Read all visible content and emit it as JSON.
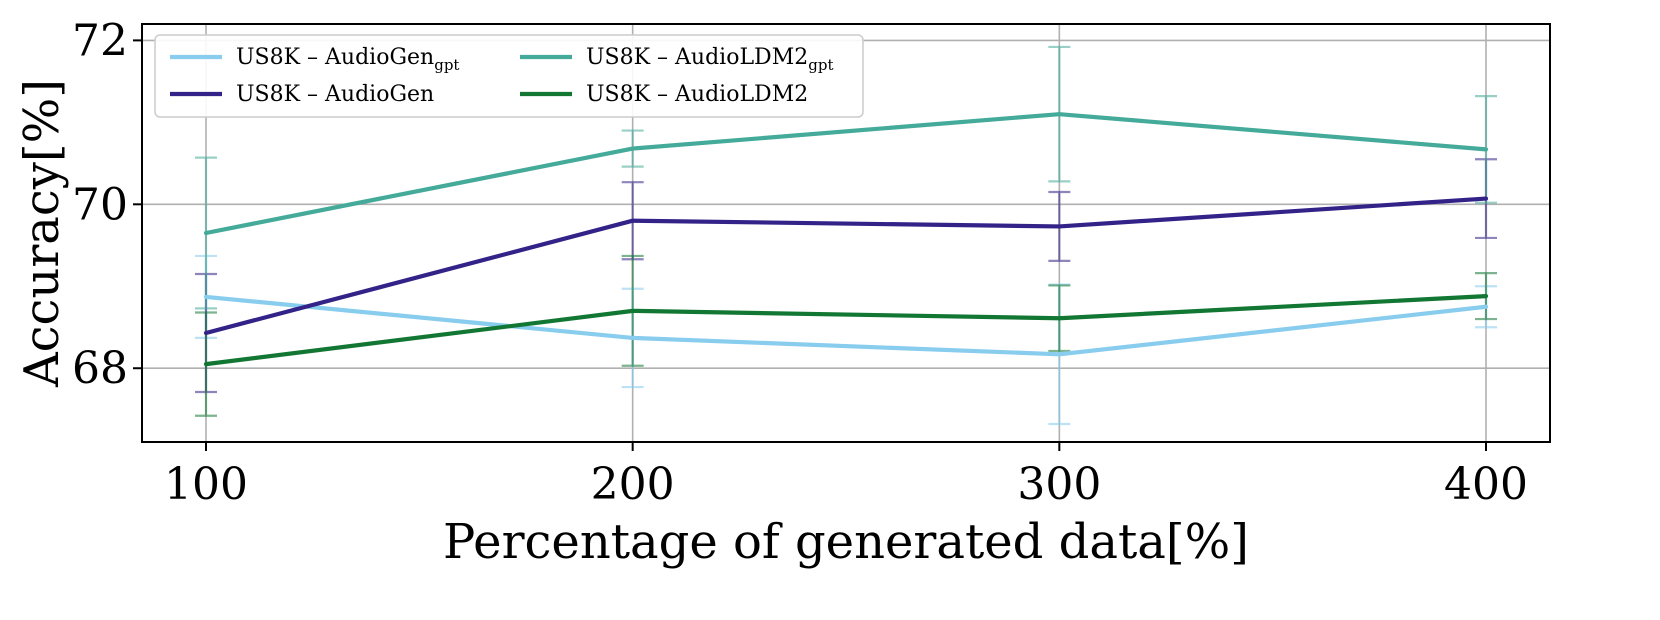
{
  "chart_data": {
    "type": "line",
    "title": "",
    "xlabel": "Percentage of generated data[%]",
    "ylabel": "Accuracy[%]",
    "x": [
      100,
      200,
      300,
      400
    ],
    "x_tick_labels": [
      "100",
      "200",
      "300",
      "400"
    ],
    "xlim": [
      85,
      415
    ],
    "ylim": [
      67.1,
      72.2
    ],
    "y_ticks": [
      68,
      70,
      72
    ],
    "y_tick_labels": [
      "68",
      "70",
      "72"
    ],
    "grid": true,
    "legend_position": "top-left",
    "legend_columns": 2,
    "series": [
      {
        "name": "US8K – AudioGen",
        "subscript": "gpt",
        "color": "#88CCEE",
        "values": [
          68.87,
          68.37,
          68.17,
          68.75
        ],
        "errors": [
          0.5,
          0.6,
          0.85,
          0.25
        ]
      },
      {
        "name": "US8K – AudioGen",
        "subscript": "",
        "color": "#332288",
        "values": [
          68.43,
          69.8,
          69.73,
          70.07
        ],
        "errors": [
          0.72,
          0.47,
          0.42,
          0.48
        ]
      },
      {
        "name": "US8K – AudioLDM2",
        "subscript": "gpt",
        "color": "#44AA99",
        "values": [
          69.65,
          70.68,
          71.1,
          70.67
        ],
        "errors": [
          0.92,
          0.22,
          0.82,
          0.65
        ]
      },
      {
        "name": "US8K – AudioLDM2",
        "subscript": "",
        "color": "#117733",
        "values": [
          68.05,
          68.7,
          68.61,
          68.88
        ],
        "errors": [
          0.63,
          0.67,
          0.4,
          0.28
        ]
      }
    ]
  }
}
